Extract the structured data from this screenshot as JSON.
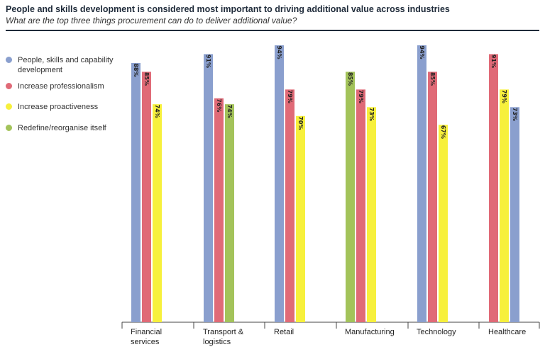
{
  "header": {
    "title": "People and skills development is considered most important to driving additional value across industries",
    "subtitle": "What are the top three things procurement can do to deliver additional value?"
  },
  "legend": [
    {
      "label": "People, skills and capability development",
      "color": "#8a9fce"
    },
    {
      "label": "Increase professionalism",
      "color": "#e06a77"
    },
    {
      "label": "Increase proactiveness",
      "color": "#f7f03c"
    },
    {
      "label": "Redefine/reorganise itself",
      "color": "#a3c35a"
    }
  ],
  "chart_data": {
    "type": "bar",
    "ylim": [
      0,
      100
    ],
    "categories": [
      {
        "label_lines": [
          "Financial",
          "services"
        ]
      },
      {
        "label_lines": [
          "Transport &",
          "logistics"
        ]
      },
      {
        "label_lines": [
          "Retail"
        ]
      },
      {
        "label_lines": [
          "Manufacturing"
        ]
      },
      {
        "label_lines": [
          "Technology"
        ]
      },
      {
        "label_lines": [
          "Healthcare"
        ]
      }
    ],
    "groups": [
      [
        {
          "series": "People, skills and capability development",
          "value": 88,
          "label": "88%"
        },
        {
          "series": "Increase professionalism",
          "value": 85,
          "label": "85%"
        },
        {
          "series": "Increase proactiveness",
          "value": 74,
          "label": "74%"
        }
      ],
      [
        {
          "series": "People, skills and capability development",
          "value": 91,
          "label": "91%"
        },
        {
          "series": "Increase professionalism",
          "value": 76,
          "label": "76%"
        },
        {
          "series": "Redefine/reorganise itself",
          "value": 74,
          "label": "74%"
        }
      ],
      [
        {
          "series": "People, skills and capability development",
          "value": 94,
          "label": "94%"
        },
        {
          "series": "Increase professionalism",
          "value": 79,
          "label": "79%"
        },
        {
          "series": "Increase proactiveness",
          "value": 70,
          "label": "70%"
        }
      ],
      [
        {
          "series": "Redefine/reorganise itself",
          "value": 85,
          "label": "85%"
        },
        {
          "series": "Increase professionalism",
          "value": 79,
          "label": "79%"
        },
        {
          "series": "Increase proactiveness",
          "value": 73,
          "label": "73%"
        }
      ],
      [
        {
          "series": "People, skills and capability development",
          "value": 94,
          "label": "94%"
        },
        {
          "series": "Increase professionalism",
          "value": 85,
          "label": "85%"
        },
        {
          "series": "Increase proactiveness",
          "value": 67,
          "label": "67%"
        }
      ],
      [
        {
          "series": "Increase professionalism",
          "value": 91,
          "label": "91%"
        },
        {
          "series": "Increase proactiveness",
          "value": 79,
          "label": "79%"
        },
        {
          "series": "People, skills and capability development",
          "value": 73,
          "label": "73%"
        }
      ]
    ]
  }
}
